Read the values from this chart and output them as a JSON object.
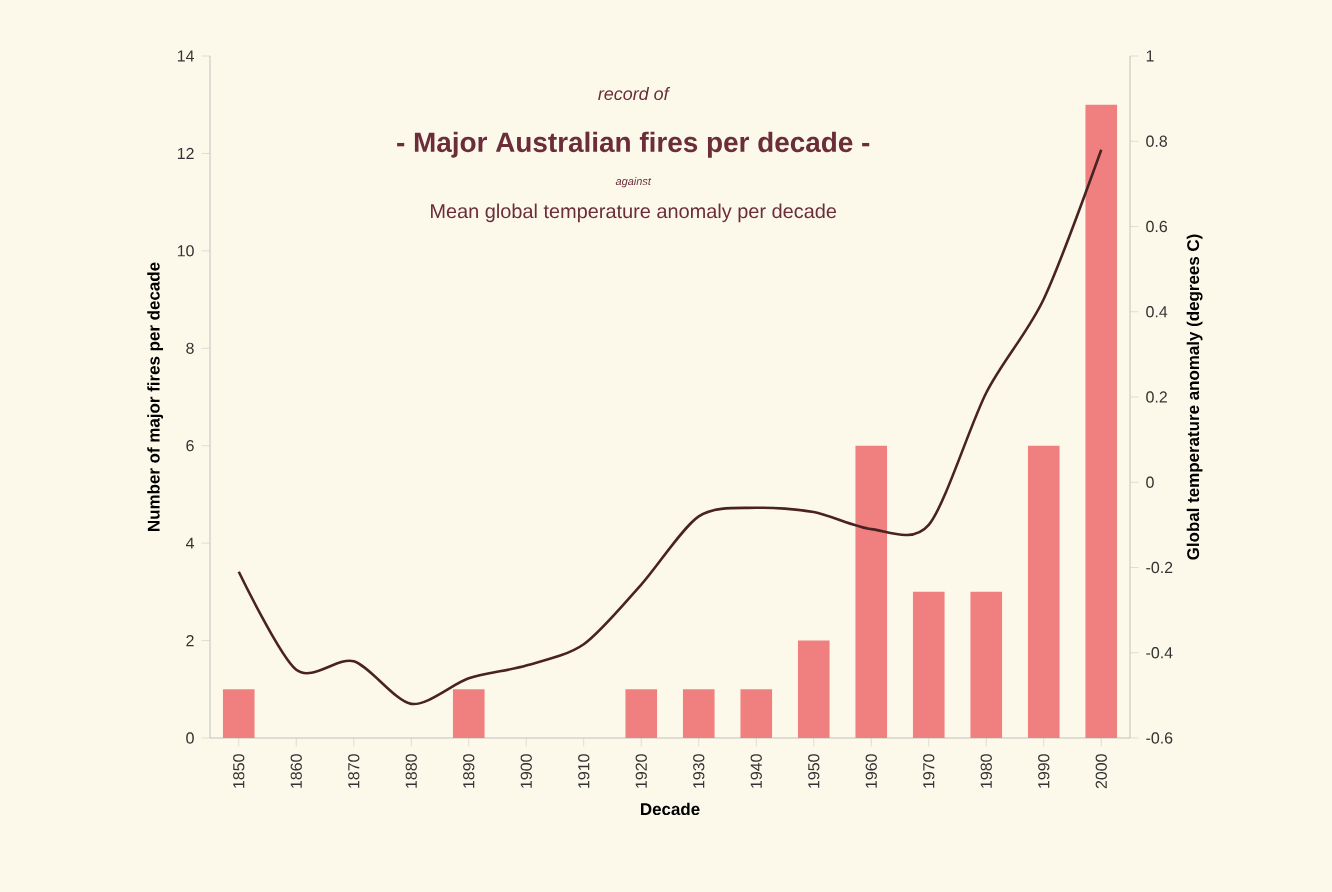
{
  "chart_data": {
    "type": "bar",
    "title": "- Major Australian fires per decade -",
    "subtitle": "Mean global temperature anomaly per decade",
    "annotations": [
      "record of",
      "against"
    ],
    "xlabel": "Decade",
    "ylabel": "Number of major fires per decade",
    "y2label": "Global temperature anomaly (degrees C)",
    "categories": [
      "1850",
      "1860",
      "1870",
      "1880",
      "1890",
      "1900",
      "1910",
      "1920",
      "1930",
      "1940",
      "1950",
      "1960",
      "1970",
      "1980",
      "1990",
      "2000"
    ],
    "series": [
      {
        "color": "#f08080",
        "values": [
          1,
          0,
          0,
          0,
          1,
          0,
          0,
          1,
          1,
          1,
          2,
          6,
          3,
          3,
          6,
          13
        ]
      },
      {
        "type": "line",
        "axis": "y2",
        "color": "#4a2222",
        "values": [
          -0.21,
          -0.44,
          -0.42,
          -0.52,
          -0.46,
          -0.43,
          -0.38,
          -0.24,
          -0.08,
          -0.06,
          -0.07,
          -0.11,
          -0.1,
          0.21,
          0.43,
          0.78
        ]
      }
    ],
    "ylim": [
      0,
      14
    ],
    "yticks": [
      0,
      2,
      4,
      6,
      8,
      10,
      12,
      14
    ],
    "y2lim": [
      -0.6,
      1
    ],
    "y2ticks": [
      -0.6,
      -0.4,
      -0.2,
      0,
      0.2,
      0.4,
      0.6,
      0.8,
      1
    ],
    "grid": false
  }
}
